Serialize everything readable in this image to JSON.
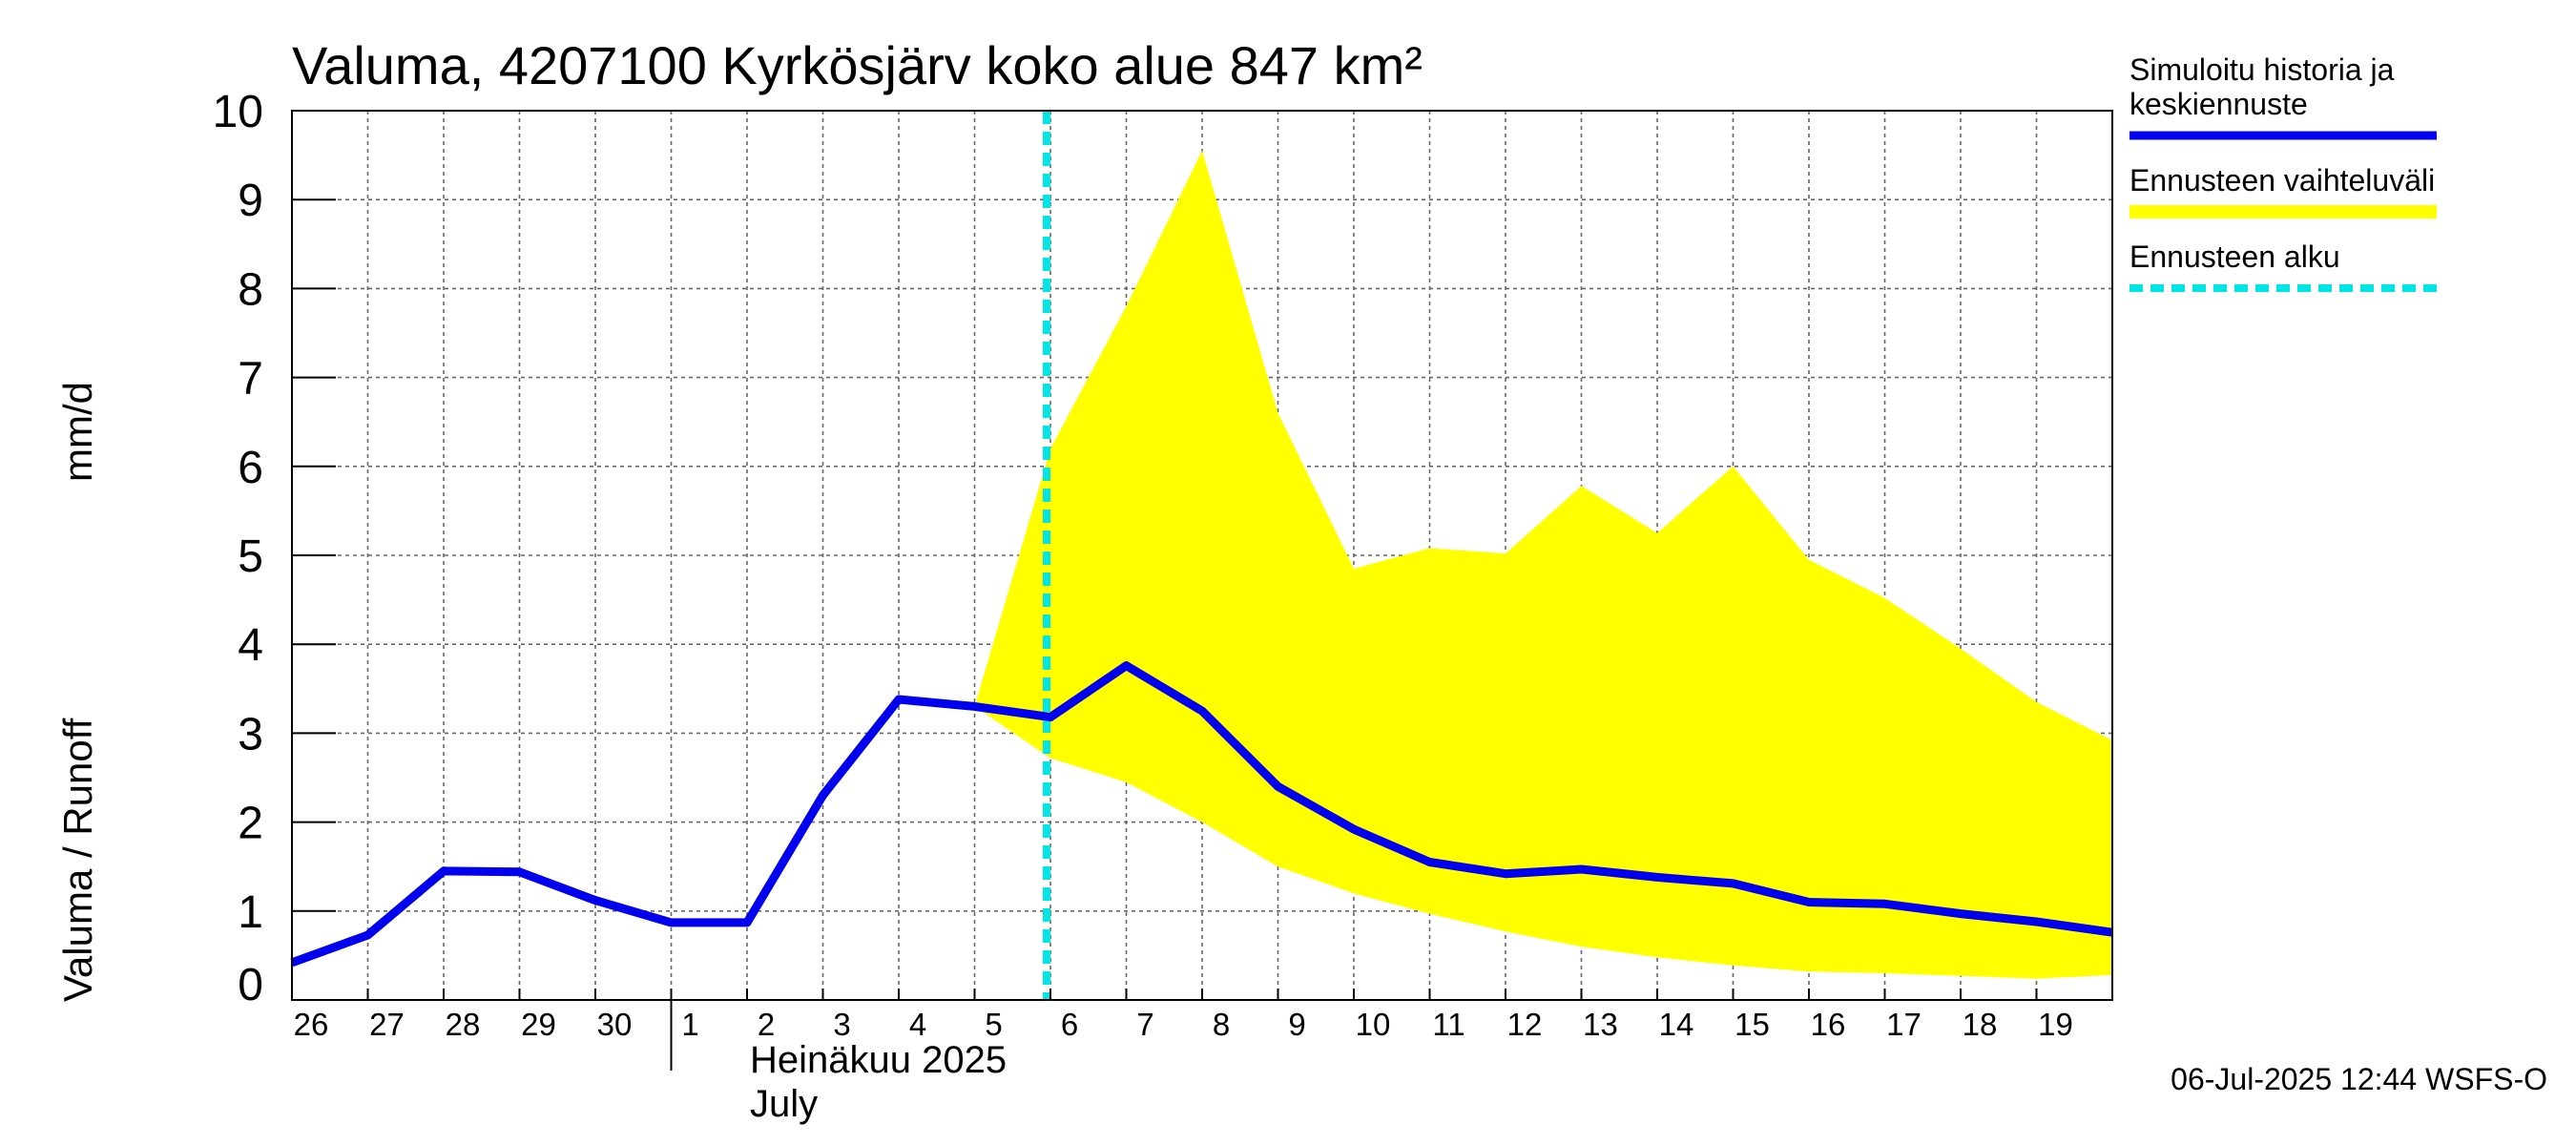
{
  "chart_data": {
    "type": "line",
    "title": "Valuma, 4207100 Kyrkösjärv koko alue 847 km²",
    "ylabel_left": "Valuma / Runoff",
    "ylabel_unit": "mm/d",
    "ylim": [
      0,
      10
    ],
    "yticks": [
      "0",
      "1",
      "2",
      "3",
      "4",
      "5",
      "6",
      "7",
      "8",
      "9",
      "10"
    ],
    "xlim": [
      0,
      24
    ],
    "x_tick_labels": [
      {
        "x": 0.0,
        "label": "26"
      },
      {
        "x": 1.0,
        "label": "27"
      },
      {
        "x": 2.0,
        "label": "28"
      },
      {
        "x": 3.0,
        "label": "29"
      },
      {
        "x": 4.0,
        "label": "30"
      },
      {
        "x": 5.0,
        "label": "1"
      },
      {
        "x": 6.0,
        "label": "2"
      },
      {
        "x": 7.0,
        "label": "3"
      },
      {
        "x": 8.0,
        "label": "4"
      },
      {
        "x": 9.0,
        "label": "5"
      },
      {
        "x": 10.0,
        "label": "6"
      },
      {
        "x": 11.0,
        "label": "7"
      },
      {
        "x": 12.0,
        "label": "8"
      },
      {
        "x": 13.0,
        "label": "9"
      },
      {
        "x": 14.0,
        "label": "10"
      },
      {
        "x": 15.0,
        "label": "11"
      },
      {
        "x": 16.0,
        "label": "12"
      },
      {
        "x": 17.0,
        "label": "13"
      },
      {
        "x": 18.0,
        "label": "14"
      },
      {
        "x": 19.0,
        "label": "15"
      },
      {
        "x": 20.0,
        "label": "16"
      },
      {
        "x": 21.0,
        "label": "17"
      },
      {
        "x": 22.0,
        "label": "18"
      },
      {
        "x": 23.0,
        "label": "19"
      }
    ],
    "month_label_fi": "Heinäkuu  2025",
    "month_label_en": "July",
    "grid": true,
    "legend_position": "right",
    "series": [
      {
        "name": "Simuloitu historia ja keskiennuste",
        "legend_lines": [
          "Simuloitu historia ja",
          "keskiennuste"
        ],
        "type": "line",
        "color": "#0000ee",
        "x": [
          0,
          1,
          2,
          3,
          4,
          5,
          5.5,
          6,
          7,
          8,
          9,
          10,
          11,
          12,
          13,
          14,
          15,
          16,
          17,
          18,
          19,
          20,
          21,
          22,
          23,
          24
        ],
        "y": [
          0.42,
          0.73,
          1.45,
          1.44,
          1.12,
          0.87,
          0.87,
          0.87,
          2.3,
          3.38,
          3.3,
          3.18,
          3.76,
          3.25,
          2.4,
          1.92,
          1.55,
          1.42,
          1.47,
          1.38,
          1.31,
          1.1,
          1.08,
          0.97,
          0.88,
          0.76
        ]
      },
      {
        "name": "Ennusteen vaihteluväli",
        "legend_lines": [
          "Ennusteen vaihteluväli"
        ],
        "type": "area",
        "color": "#ffff00",
        "x": [
          9,
          10,
          11,
          12,
          13,
          14,
          15,
          16,
          17,
          18,
          19,
          20,
          21,
          22,
          23,
          24
        ],
        "upper": [
          3.3,
          6.2,
          7.8,
          9.55,
          6.6,
          4.85,
          5.08,
          5.02,
          5.78,
          5.25,
          6.0,
          4.95,
          4.52,
          3.95,
          3.35,
          2.92
        ],
        "lower": [
          3.3,
          2.72,
          2.45,
          2.0,
          1.5,
          1.2,
          0.97,
          0.77,
          0.6,
          0.48,
          0.39,
          0.32,
          0.3,
          0.27,
          0.24,
          0.28
        ]
      },
      {
        "name": "Ennusteen alku",
        "legend_lines": [
          "Ennusteen alku"
        ],
        "type": "vline",
        "color": "#00e5e5",
        "x": 9.95
      }
    ],
    "footer": "06-Jul-2025 12:44 WSFS-O"
  }
}
